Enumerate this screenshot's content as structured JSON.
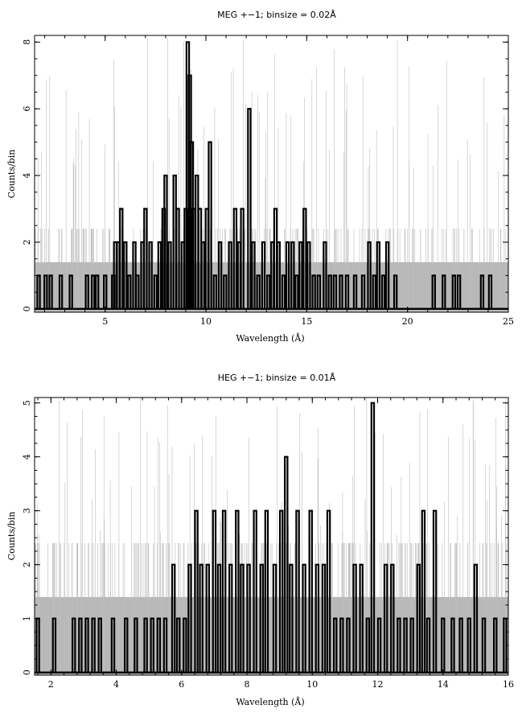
{
  "chart_data": [
    {
      "type": "bar",
      "title": "MEG +−1; binsize = 0.02Å",
      "xlabel": "Wavelength (Å)",
      "ylabel": "Counts/bin",
      "xlim": [
        1.5,
        25
      ],
      "ylim": [
        -0.1,
        8.2
      ],
      "x_ticks": [
        5,
        10,
        15,
        20,
        25
      ],
      "y_ticks": [
        0,
        2,
        4,
        6,
        8
      ],
      "error_band_level": 1.4,
      "error_upper_level": 2.4,
      "peaks": [
        {
          "x": 1.7,
          "y": 1
        },
        {
          "x": 2.05,
          "y": 1
        },
        {
          "x": 2.3,
          "y": 1
        },
        {
          "x": 2.8,
          "y": 1
        },
        {
          "x": 3.3,
          "y": 1
        },
        {
          "x": 4.1,
          "y": 1
        },
        {
          "x": 4.4,
          "y": 1
        },
        {
          "x": 4.6,
          "y": 1
        },
        {
          "x": 5.0,
          "y": 1
        },
        {
          "x": 5.4,
          "y": 1
        },
        {
          "x": 5.5,
          "y": 2
        },
        {
          "x": 5.65,
          "y": 2
        },
        {
          "x": 5.8,
          "y": 3
        },
        {
          "x": 6.0,
          "y": 2
        },
        {
          "x": 6.2,
          "y": 1
        },
        {
          "x": 6.45,
          "y": 2
        },
        {
          "x": 6.6,
          "y": 1
        },
        {
          "x": 6.85,
          "y": 2
        },
        {
          "x": 7.0,
          "y": 3
        },
        {
          "x": 7.25,
          "y": 2
        },
        {
          "x": 7.5,
          "y": 1
        },
        {
          "x": 7.7,
          "y": 2
        },
        {
          "x": 7.9,
          "y": 3
        },
        {
          "x": 8.0,
          "y": 4
        },
        {
          "x": 8.2,
          "y": 2
        },
        {
          "x": 8.45,
          "y": 4
        },
        {
          "x": 8.6,
          "y": 3
        },
        {
          "x": 8.85,
          "y": 2
        },
        {
          "x": 9.0,
          "y": 3
        },
        {
          "x": 9.1,
          "y": 8
        },
        {
          "x": 9.2,
          "y": 7
        },
        {
          "x": 9.3,
          "y": 5
        },
        {
          "x": 9.4,
          "y": 3
        },
        {
          "x": 9.55,
          "y": 4
        },
        {
          "x": 9.7,
          "y": 3
        },
        {
          "x": 9.85,
          "y": 2
        },
        {
          "x": 10.05,
          "y": 3
        },
        {
          "x": 10.2,
          "y": 5
        },
        {
          "x": 10.45,
          "y": 1
        },
        {
          "x": 10.7,
          "y": 2
        },
        {
          "x": 10.95,
          "y": 1
        },
        {
          "x": 11.2,
          "y": 2
        },
        {
          "x": 11.45,
          "y": 3
        },
        {
          "x": 11.65,
          "y": 2
        },
        {
          "x": 11.8,
          "y": 3
        },
        {
          "x": 12.15,
          "y": 6
        },
        {
          "x": 12.35,
          "y": 2
        },
        {
          "x": 12.6,
          "y": 1
        },
        {
          "x": 12.85,
          "y": 2
        },
        {
          "x": 13.1,
          "y": 1
        },
        {
          "x": 13.3,
          "y": 2
        },
        {
          "x": 13.45,
          "y": 3
        },
        {
          "x": 13.6,
          "y": 2
        },
        {
          "x": 13.85,
          "y": 1
        },
        {
          "x": 14.05,
          "y": 2
        },
        {
          "x": 14.3,
          "y": 2
        },
        {
          "x": 14.5,
          "y": 1
        },
        {
          "x": 14.7,
          "y": 2
        },
        {
          "x": 14.9,
          "y": 3
        },
        {
          "x": 15.1,
          "y": 2
        },
        {
          "x": 15.35,
          "y": 1
        },
        {
          "x": 15.6,
          "y": 1
        },
        {
          "x": 15.9,
          "y": 2
        },
        {
          "x": 16.15,
          "y": 1
        },
        {
          "x": 16.4,
          "y": 1
        },
        {
          "x": 16.7,
          "y": 1
        },
        {
          "x": 17.0,
          "y": 1
        },
        {
          "x": 17.4,
          "y": 1
        },
        {
          "x": 17.8,
          "y": 1
        },
        {
          "x": 18.1,
          "y": 2
        },
        {
          "x": 18.35,
          "y": 1
        },
        {
          "x": 18.55,
          "y": 2
        },
        {
          "x": 18.8,
          "y": 1
        },
        {
          "x": 19.0,
          "y": 2
        },
        {
          "x": 19.4,
          "y": 1
        },
        {
          "x": 21.3,
          "y": 1
        },
        {
          "x": 21.8,
          "y": 1
        },
        {
          "x": 22.3,
          "y": 1
        },
        {
          "x": 22.55,
          "y": 1
        },
        {
          "x": 23.7,
          "y": 1
        },
        {
          "x": 24.1,
          "y": 1
        }
      ]
    },
    {
      "type": "bar",
      "title": "HEG +−1; binsize = 0.01Å",
      "xlabel": "Wavelength (Å)",
      "ylabel": "Counts/bin",
      "xlim": [
        1.5,
        16
      ],
      "ylim": [
        -0.05,
        5.1
      ],
      "x_ticks": [
        2,
        4,
        6,
        8,
        10,
        12,
        14,
        16
      ],
      "y_ticks": [
        0,
        1,
        2,
        3,
        4,
        5
      ],
      "error_band_level": 1.4,
      "error_upper_level": 2.4,
      "peaks": [
        {
          "x": 1.6,
          "y": 1
        },
        {
          "x": 2.1,
          "y": 1
        },
        {
          "x": 2.7,
          "y": 1
        },
        {
          "x": 2.9,
          "y": 1
        },
        {
          "x": 3.1,
          "y": 1
        },
        {
          "x": 3.3,
          "y": 1
        },
        {
          "x": 3.5,
          "y": 1
        },
        {
          "x": 3.9,
          "y": 1
        },
        {
          "x": 4.3,
          "y": 1
        },
        {
          "x": 4.6,
          "y": 1
        },
        {
          "x": 4.9,
          "y": 1
        },
        {
          "x": 5.1,
          "y": 1
        },
        {
          "x": 5.3,
          "y": 1
        },
        {
          "x": 5.5,
          "y": 1
        },
        {
          "x": 5.75,
          "y": 2
        },
        {
          "x": 5.9,
          "y": 1
        },
        {
          "x": 6.1,
          "y": 1
        },
        {
          "x": 6.25,
          "y": 2
        },
        {
          "x": 6.45,
          "y": 3
        },
        {
          "x": 6.6,
          "y": 2
        },
        {
          "x": 6.8,
          "y": 2
        },
        {
          "x": 7.0,
          "y": 3
        },
        {
          "x": 7.15,
          "y": 2
        },
        {
          "x": 7.3,
          "y": 3
        },
        {
          "x": 7.5,
          "y": 2
        },
        {
          "x": 7.7,
          "y": 3
        },
        {
          "x": 7.85,
          "y": 2
        },
        {
          "x": 8.05,
          "y": 2
        },
        {
          "x": 8.25,
          "y": 3
        },
        {
          "x": 8.45,
          "y": 2
        },
        {
          "x": 8.6,
          "y": 3
        },
        {
          "x": 8.85,
          "y": 2
        },
        {
          "x": 9.05,
          "y": 3
        },
        {
          "x": 9.2,
          "y": 4
        },
        {
          "x": 9.35,
          "y": 2
        },
        {
          "x": 9.55,
          "y": 3
        },
        {
          "x": 9.75,
          "y": 2
        },
        {
          "x": 9.95,
          "y": 3
        },
        {
          "x": 10.15,
          "y": 2
        },
        {
          "x": 10.35,
          "y": 2
        },
        {
          "x": 10.5,
          "y": 3
        },
        {
          "x": 10.7,
          "y": 1
        },
        {
          "x": 10.9,
          "y": 1
        },
        {
          "x": 11.1,
          "y": 1
        },
        {
          "x": 11.3,
          "y": 2
        },
        {
          "x": 11.5,
          "y": 2
        },
        {
          "x": 11.7,
          "y": 1
        },
        {
          "x": 11.85,
          "y": 5
        },
        {
          "x": 12.05,
          "y": 1
        },
        {
          "x": 12.25,
          "y": 2
        },
        {
          "x": 12.45,
          "y": 2
        },
        {
          "x": 12.65,
          "y": 1
        },
        {
          "x": 12.85,
          "y": 1
        },
        {
          "x": 13.05,
          "y": 1
        },
        {
          "x": 13.25,
          "y": 2
        },
        {
          "x": 13.4,
          "y": 3
        },
        {
          "x": 13.55,
          "y": 1
        },
        {
          "x": 13.75,
          "y": 3
        },
        {
          "x": 14.0,
          "y": 1
        },
        {
          "x": 14.3,
          "y": 1
        },
        {
          "x": 14.55,
          "y": 1
        },
        {
          "x": 14.8,
          "y": 1
        },
        {
          "x": 15.0,
          "y": 2
        },
        {
          "x": 15.25,
          "y": 1
        },
        {
          "x": 15.6,
          "y": 1
        },
        {
          "x": 15.9,
          "y": 1
        }
      ]
    }
  ],
  "colors": {
    "histogram": "#000000",
    "error_band": "#b8b8b8",
    "error_lines": "#bdbdbd"
  }
}
